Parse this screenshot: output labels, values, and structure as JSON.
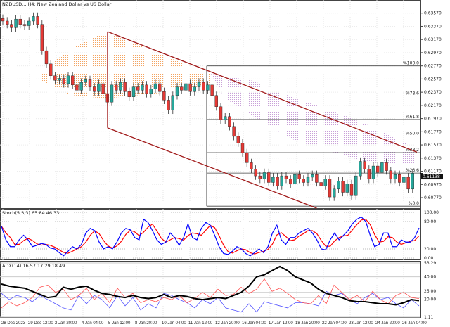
{
  "header": {
    "title": "NZDUSD.., H4:  New Zealand Dollar vs US Dollar"
  },
  "colors": {
    "bull": "#26a69a",
    "bear": "#e53935",
    "channel": "#a11a1a",
    "stoch_k": "#0000ff",
    "stoch_d": "#ff0000",
    "adx": "#000000",
    "plus_di": "#ff5050",
    "minus_di": "#5050ff",
    "cloud_bull": "#f4a460",
    "cloud_bear": "#c8a0d8"
  },
  "chart_data": [
    {
      "type": "candlestick",
      "symbol": "NZDUSD",
      "timeframe": "H4",
      "ylim": [
        0.6061,
        0.6377
      ],
      "y_ticks": [
        "0.63570",
        "0.63370",
        "0.63170",
        "0.62970",
        "0.62770",
        "0.62570",
        "0.62370",
        "0.62170",
        "0.61970",
        "0.61770",
        "0.61570",
        "0.61370",
        "0.61170",
        "0.60970",
        "0.60770"
      ],
      "current_price": "0.61138",
      "closes": [
        0.6345,
        0.634,
        0.6335,
        0.6348,
        0.634,
        0.6338,
        0.6345,
        0.6352,
        0.634,
        0.63,
        0.628,
        0.6262,
        0.6255,
        0.6258,
        0.625,
        0.6262,
        0.6248,
        0.624,
        0.6252,
        0.6256,
        0.6245,
        0.6238,
        0.625,
        0.6235,
        0.6222,
        0.6248,
        0.624,
        0.6252,
        0.6238,
        0.623,
        0.6245,
        0.624,
        0.6248,
        0.6235,
        0.6242,
        0.625,
        0.6238,
        0.6225,
        0.621,
        0.6232,
        0.6245,
        0.624,
        0.625,
        0.6238,
        0.6245,
        0.6252,
        0.624,
        0.6248,
        0.6232,
        0.6215,
        0.6195,
        0.62,
        0.6185,
        0.617,
        0.616,
        0.6145,
        0.613,
        0.612,
        0.611,
        0.6105,
        0.6115,
        0.61,
        0.6108,
        0.6095,
        0.611,
        0.6105,
        0.6098,
        0.6112,
        0.6105,
        0.61,
        0.6108,
        0.6112,
        0.61,
        0.6095,
        0.6105,
        0.6078,
        0.609,
        0.6102,
        0.6085,
        0.6098,
        0.608,
        0.611,
        0.6132,
        0.612,
        0.6105,
        0.6125,
        0.6115,
        0.613,
        0.6118,
        0.6105,
        0.6112,
        0.61,
        0.6108,
        0.609,
        0.6114
      ],
      "fibonacci": {
        "high": 0.6277,
        "low": 0.6064,
        "levels": [
          {
            "pct": 100.0,
            "label": "%100.0"
          },
          {
            "pct": 78.6,
            "label": "%78.6"
          },
          {
            "pct": 61.8,
            "label": "%61.8"
          },
          {
            "pct": 50.0,
            "label": "%50.0"
          },
          {
            "pct": 38.2,
            "label": "%38.2"
          },
          {
            "pct": 23.6,
            "label": "%23.6"
          },
          {
            "pct": 0.0,
            "label": "%0.0"
          }
        ]
      },
      "channel": {
        "upper": [
          [
            24,
            0.6329
          ],
          [
            95,
            0.6146
          ]
        ],
        "lower": [
          [
            24,
            0.6183
          ],
          [
            72,
            0.6061
          ]
        ]
      },
      "x_labels": [
        "28 Dec 2023",
        "29 Dec 12:00",
        "2 Jan 20:00",
        "4 Jan 04:00",
        "5 Jan 12:00",
        "8 Jan 20:00",
        "10 Jan 04:00",
        "11 Jan 12:00",
        "12 Jan 20:00",
        "16 Jan 04:00",
        "17 Jan 12:00",
        "18 Jan 20:00",
        "22 Jan 04:00",
        "23 Jan 12:00",
        "24 Jan 20:00",
        "26 Jan 04:00"
      ]
    },
    {
      "type": "line",
      "title": "Stoch(5,3,3) 65.84 46.33",
      "ylim": [
        0,
        100
      ],
      "y_ticks": [
        "100.00",
        "80.00",
        "20.00",
        "0.00"
      ],
      "series": [
        {
          "key": "k",
          "values": [
            70,
            40,
            25,
            25,
            40,
            50,
            40,
            25,
            28,
            32,
            30,
            22,
            20,
            12,
            5,
            15,
            25,
            20,
            30,
            55,
            65,
            60,
            35,
            20,
            25,
            20,
            35,
            55,
            65,
            62,
            45,
            40,
            85,
            78,
            60,
            40,
            30,
            35,
            55,
            45,
            28,
            45,
            75,
            45,
            40,
            65,
            78,
            72,
            50,
            25,
            10,
            8,
            15,
            25,
            20,
            10,
            5,
            12,
            20,
            12,
            25,
            55,
            72,
            40,
            30,
            45,
            45,
            55,
            60,
            65,
            55,
            40,
            20,
            18,
            40,
            55,
            40,
            50,
            60,
            75,
            85,
            90,
            80,
            50,
            25,
            30,
            55,
            55,
            25,
            25,
            40,
            35,
            35,
            45,
            66
          ]
        }
      ]
    },
    {
      "type": "line",
      "title": "ADX(14) 16.57 17.29 18.49",
      "ylim": [
        1.11,
        53.29
      ],
      "y_ticks": [
        "53.29",
        "40.00",
        "25.00",
        "20.00",
        "1.11"
      ],
      "series": [
        {
          "key": "adx",
          "values": [
            33,
            31,
            30,
            29,
            26,
            23,
            20,
            21,
            30,
            28,
            30,
            31,
            27,
            24,
            23,
            21,
            20,
            22,
            20,
            19,
            20,
            23,
            20,
            22,
            21,
            19,
            18,
            19,
            20,
            19,
            22,
            25,
            31,
            40,
            42,
            46,
            50,
            46,
            40,
            37,
            34,
            28,
            24,
            22,
            20,
            17,
            16,
            16,
            15,
            14,
            14,
            13,
            15,
            18,
            17
          ]
        },
        {
          "key": "plus_di",
          "values": [
            10,
            16,
            12,
            15,
            20,
            30,
            32,
            25,
            28,
            18,
            22,
            29,
            18,
            24,
            15,
            29,
            20,
            24,
            15,
            18,
            16,
            20,
            18,
            22,
            15,
            19,
            25,
            20,
            28,
            22,
            23,
            30,
            24,
            28,
            38,
            26,
            29,
            24,
            18,
            15,
            14,
            22,
            14,
            32,
            25,
            18,
            22,
            16,
            26,
            18,
            14,
            22,
            25,
            20,
            19
          ]
        },
        {
          "key": "minus_di",
          "values": [
            24,
            18,
            22,
            20,
            16,
            22,
            18,
            14,
            10,
            8,
            22,
            14,
            22,
            18,
            10,
            22,
            12,
            20,
            8,
            14,
            10,
            24,
            22,
            18,
            15,
            10,
            18,
            14,
            20,
            10,
            8,
            6,
            14,
            6,
            16,
            14,
            12,
            10,
            15,
            15,
            14,
            12,
            26,
            22,
            24,
            18,
            14,
            20,
            24,
            18,
            20,
            14,
            10,
            18,
            12
          ]
        }
      ]
    }
  ]
}
